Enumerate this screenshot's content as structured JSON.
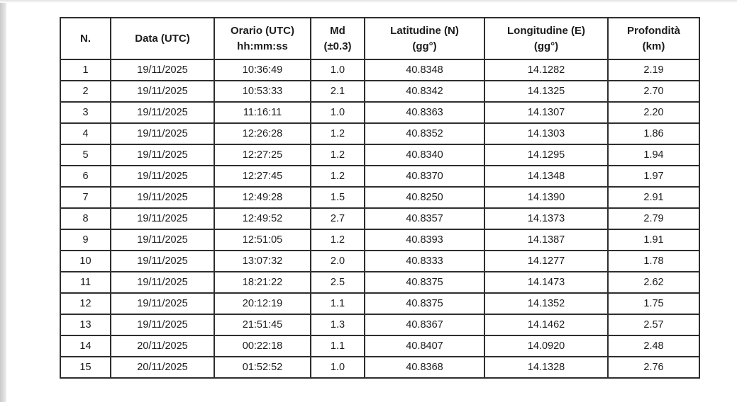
{
  "table": {
    "columns": [
      {
        "key": "n",
        "line1": "N.",
        "line2": ""
      },
      {
        "key": "data",
        "line1": "Data (UTC)",
        "line2": ""
      },
      {
        "key": "orario",
        "line1": "Orario (UTC)",
        "line2": "hh:mm:ss"
      },
      {
        "key": "md",
        "line1": "Md",
        "line2": "(±0.3)"
      },
      {
        "key": "latitudine",
        "line1": "Latitudine (N)",
        "line2": "(gg°)"
      },
      {
        "key": "longitudine",
        "line1": "Longitudine (E)",
        "line2": "(gg°)"
      },
      {
        "key": "profondita",
        "line1": "Profondità",
        "line2": "(km)"
      }
    ],
    "rows": [
      {
        "cells": [
          "1",
          "19/11/2025",
          "10:36:49",
          "1.0",
          "40.8348",
          "14.1282",
          "2.19"
        ]
      },
      {
        "cells": [
          "2",
          "19/11/2025",
          "10:53:33",
          "2.1",
          "40.8342",
          "14.1325",
          "2.70"
        ]
      },
      {
        "cells": [
          "3",
          "19/11/2025",
          "11:16:11",
          "1.0",
          "40.8363",
          "14.1307",
          "2.20"
        ]
      },
      {
        "cells": [
          "4",
          "19/11/2025",
          "12:26:28",
          "1.2",
          "40.8352",
          "14.1303",
          "1.86"
        ]
      },
      {
        "cells": [
          "5",
          "19/11/2025",
          "12:27:25",
          "1.2",
          "40.8340",
          "14.1295",
          "1.94"
        ]
      },
      {
        "cells": [
          "6",
          "19/11/2025",
          "12:27:45",
          "1.2",
          "40.8370",
          "14.1348",
          "1.97"
        ]
      },
      {
        "cells": [
          "7",
          "19/11/2025",
          "12:49:28",
          "1.5",
          "40.8250",
          "14.1390",
          "2.91"
        ]
      },
      {
        "cells": [
          "8",
          "19/11/2025",
          "12:49:52",
          "2.7",
          "40.8357",
          "14.1373",
          "2.79"
        ]
      },
      {
        "cells": [
          "9",
          "19/11/2025",
          "12:51:05",
          "1.2",
          "40.8393",
          "14.1387",
          "1.91"
        ]
      },
      {
        "cells": [
          "10",
          "19/11/2025",
          "13:07:32",
          "2.0",
          "40.8333",
          "14.1277",
          "1.78"
        ]
      },
      {
        "cells": [
          "11",
          "19/11/2025",
          "18:21:22",
          "2.5",
          "40.8375",
          "14.1473",
          "2.62"
        ]
      },
      {
        "cells": [
          "12",
          "19/11/2025",
          "20:12:19",
          "1.1",
          "40.8375",
          "14.1352",
          "1.75"
        ]
      },
      {
        "cells": [
          "13",
          "19/11/2025",
          "21:51:45",
          "1.3",
          "40.8367",
          "14.1462",
          "2.57"
        ]
      },
      {
        "cells": [
          "14",
          "20/11/2025",
          "00:22:18",
          "1.1",
          "40.8407",
          "14.0920",
          "2.48"
        ]
      },
      {
        "cells": [
          "15",
          "20/11/2025",
          "01:52:52",
          "1.0",
          "40.8368",
          "14.1328",
          "2.76"
        ]
      }
    ]
  },
  "colors": {
    "border": "#2e2e2e",
    "background": "#ffffff",
    "text": "#1c1c1c",
    "photo_edge": "#c9c9c9"
  }
}
